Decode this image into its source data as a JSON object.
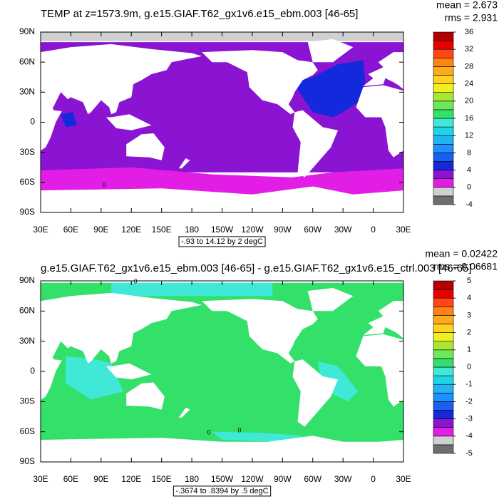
{
  "chart_data": [
    {
      "type": "contour-map",
      "title": "TEMP at z=1573.9m, g.e15.GIAF.T62_gx1v6.e15_ebm.003 [46-65]",
      "stats": [
        "mean = 2.673",
        "rms = 2.931"
      ],
      "info": "-.93 to 14.12 by 2 degC",
      "contour_labels": [
        "0"
      ],
      "xlim": [
        30,
        390
      ],
      "xticks": [
        {
          "value": 30,
          "label": "30E"
        },
        {
          "value": 60,
          "label": "60E"
        },
        {
          "value": 90,
          "label": "90E"
        },
        {
          "value": 120,
          "label": "120E"
        },
        {
          "value": 150,
          "label": "150E"
        },
        180,
        {
          "value": 210,
          "label": "150W"
        },
        {
          "value": 240,
          "label": "120W"
        },
        {
          "value": 270,
          "label": "90W"
        },
        {
          "value": 300,
          "label": "60W"
        },
        {
          "value": 330,
          "label": "30W"
        },
        {
          "value": 360,
          "label": "0"
        },
        {
          "value": 390,
          "label": "30E"
        }
      ],
      "ylim": [
        -90,
        90
      ],
      "yticks": [
        {
          "value": -90,
          "label": "90S"
        },
        {
          "value": -60,
          "label": "60S"
        },
        {
          "value": -30,
          "label": "30S"
        },
        0,
        {
          "value": 30,
          "label": "30N"
        },
        {
          "value": 60,
          "label": "60N"
        },
        {
          "value": 90,
          "label": "90N"
        }
      ],
      "colorbar": {
        "levels": [
          -4,
          0,
          4,
          8,
          12,
          16,
          20,
          24,
          28,
          32,
          36
        ],
        "colors": [
          "#6e6e6e",
          "#d0d0d0",
          "#e21ee6",
          "#8a14d2",
          "#1428dc",
          "#1a5ff0",
          "#1e90ff",
          "#20b4f0",
          "#20d4e8",
          "#40e8d8",
          "#33e06a",
          "#6ee85a",
          "#a8e632",
          "#f0f01e",
          "#ffd21e",
          "#ffaa1e",
          "#ff8214",
          "#ff4614",
          "#e60000",
          "#b40000"
        ]
      }
    },
    {
      "type": "contour-map",
      "title": "g.e15.GIAF.T62_gx1v6.e15_ebm.003 [46-65] - g.e15.GIAF.T62_gx1v6.e15_ctrl.003 [46-65]",
      "stats": [
        "mean = 0.02422",
        "rms = 0.06681"
      ],
      "info": "-.3674 to .8394 by .5 degC",
      "contour_labels": [
        "0",
        "0",
        "0"
      ],
      "xlim": [
        30,
        390
      ],
      "xticks": [
        {
          "value": 30,
          "label": "30E"
        },
        {
          "value": 60,
          "label": "60E"
        },
        {
          "value": 90,
          "label": "90E"
        },
        {
          "value": 120,
          "label": "120E"
        },
        {
          "value": 150,
          "label": "150E"
        },
        180,
        {
          "value": 210,
          "label": "150W"
        },
        {
          "value": 240,
          "label": "120W"
        },
        {
          "value": 270,
          "label": "90W"
        },
        {
          "value": 300,
          "label": "60W"
        },
        {
          "value": 330,
          "label": "30W"
        },
        {
          "value": 360,
          "label": "0"
        },
        {
          "value": 390,
          "label": "30E"
        }
      ],
      "ylim": [
        -90,
        90
      ],
      "yticks": [
        {
          "value": -90,
          "label": "90S"
        },
        {
          "value": -60,
          "label": "60S"
        },
        {
          "value": -30,
          "label": "30S"
        },
        0,
        {
          "value": 30,
          "label": "30N"
        },
        {
          "value": 60,
          "label": "60N"
        },
        {
          "value": 90,
          "label": "90N"
        }
      ],
      "colorbar": {
        "levels": [
          -5,
          -4,
          -3,
          -2,
          -1,
          0,
          1,
          2,
          3,
          4,
          5
        ],
        "colors": [
          "#6e6e6e",
          "#d0d0d0",
          "#e21ee6",
          "#8a14d2",
          "#1428dc",
          "#1a5ff0",
          "#1e90ff",
          "#20b4f0",
          "#20d4e8",
          "#40e8d8",
          "#33e06a",
          "#6ee85a",
          "#a8e632",
          "#f0f01e",
          "#ffd21e",
          "#ffaa1e",
          "#ff8214",
          "#ff4614",
          "#e60000",
          "#b40000"
        ]
      }
    }
  ]
}
